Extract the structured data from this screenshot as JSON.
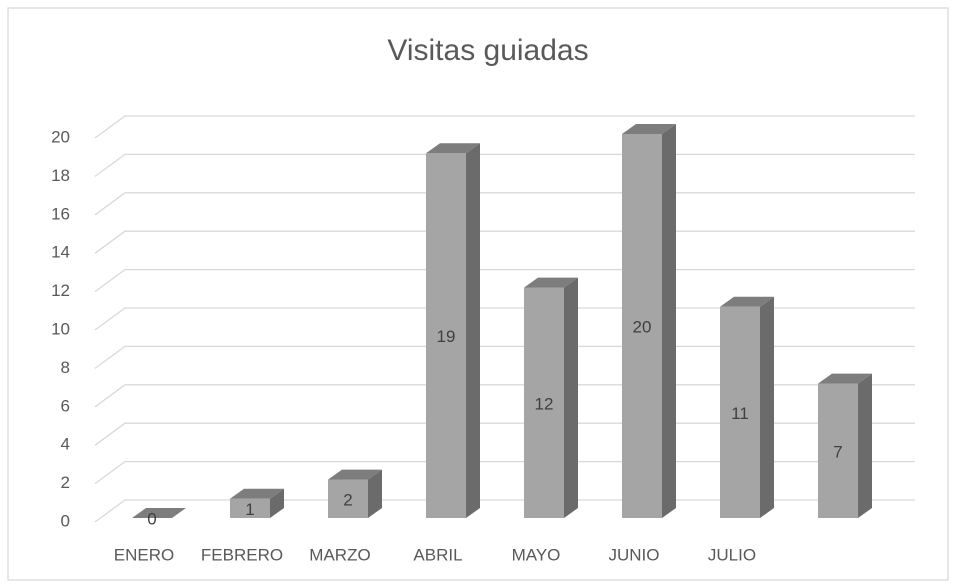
{
  "chart_data": {
    "type": "bar3d",
    "title": "Visitas guiadas",
    "categories": [
      "ENERO",
      "FEBRERO",
      "MARZO",
      "ABRIL",
      "MAYO",
      "JUNIO",
      "JULIO",
      null
    ],
    "values": [
      0,
      1,
      2,
      19,
      12,
      20,
      11,
      7
    ],
    "color": "#a5a5a5",
    "ylim": [
      0,
      20
    ],
    "yticks": [
      0,
      2,
      4,
      6,
      8,
      10,
      12,
      14,
      16,
      18,
      20
    ],
    "grid": true
  }
}
